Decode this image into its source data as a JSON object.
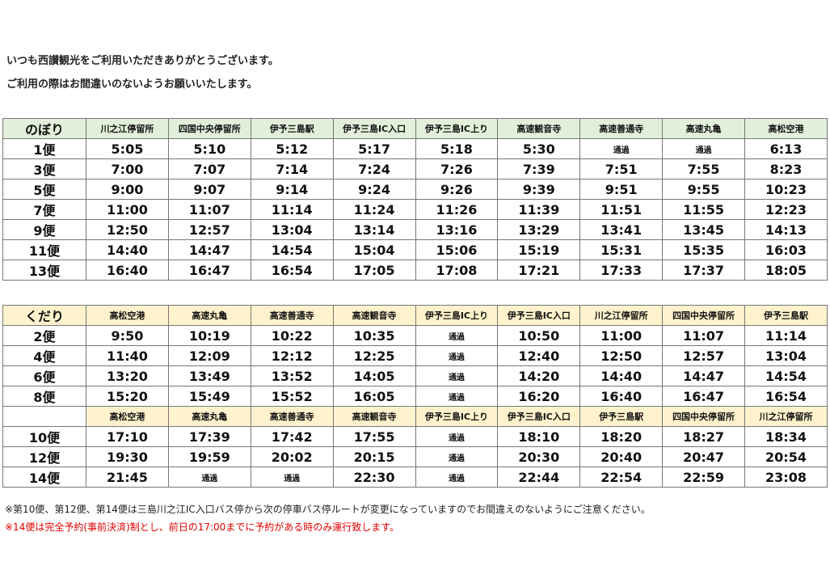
{
  "intro": [
    "いつも西讃観光をご利用いただきありがとうございます。",
    "ご利用の際はお間違いのないようお願いいたします。"
  ],
  "colors": {
    "up_header": "#e2efda",
    "down_header": "#fff2cc",
    "warning": "#e00000"
  },
  "up": {
    "label": "のぼり",
    "stops": [
      "川之江停留所",
      "四国中央停留所",
      "伊予三島駅",
      "伊予三島IC入口",
      "伊予三島IC上り",
      "高速観音寺",
      "高速善通寺",
      "高速丸亀",
      "高松空港"
    ],
    "rows": [
      [
        "1便",
        "5:05",
        "5:10",
        "5:12",
        "5:17",
        "5:18",
        "5:30",
        "通過",
        "通過",
        "6:13"
      ],
      [
        "3便",
        "7:00",
        "7:07",
        "7:14",
        "7:24",
        "7:26",
        "7:39",
        "7:51",
        "7:55",
        "8:23"
      ],
      [
        "5便",
        "9:00",
        "9:07",
        "9:14",
        "9:24",
        "9:26",
        "9:39",
        "9:51",
        "9:55",
        "10:23"
      ],
      [
        "7便",
        "11:00",
        "11:07",
        "11:14",
        "11:24",
        "11:26",
        "11:39",
        "11:51",
        "11:55",
        "12:23"
      ],
      [
        "9便",
        "12:50",
        "12:57",
        "13:04",
        "13:14",
        "13:16",
        "13:29",
        "13:41",
        "13:45",
        "14:13"
      ],
      [
        "11便",
        "14:40",
        "14:47",
        "14:54",
        "15:04",
        "15:06",
        "15:19",
        "15:31",
        "15:35",
        "16:03"
      ],
      [
        "13便",
        "16:40",
        "16:47",
        "16:54",
        "17:05",
        "17:08",
        "17:21",
        "17:33",
        "17:37",
        "18:05"
      ]
    ]
  },
  "down": {
    "label": "くだり",
    "stops": [
      "高松空港",
      "高速丸亀",
      "高速善通寺",
      "高速観音寺",
      "伊予三島IC上り",
      "伊予三島IC入口",
      "川之江停留所",
      "四国中央停留所",
      "伊予三島駅"
    ],
    "rows": [
      [
        "2便",
        "9:50",
        "10:19",
        "10:22",
        "10:35",
        "通過",
        "10:50",
        "11:00",
        "11:07",
        "11:14"
      ],
      [
        "4便",
        "11:40",
        "12:09",
        "12:12",
        "12:25",
        "通過",
        "12:40",
        "12:50",
        "12:57",
        "13:04"
      ],
      [
        "6便",
        "13:20",
        "13:49",
        "13:52",
        "14:05",
        "通過",
        "14:20",
        "14:40",
        "14:47",
        "14:54"
      ],
      [
        "8便",
        "15:20",
        "15:49",
        "15:52",
        "16:05",
        "通過",
        "16:20",
        "16:40",
        "16:47",
        "16:54"
      ]
    ],
    "stops2": [
      "高松空港",
      "高速丸亀",
      "高速善通寺",
      "高速観音寺",
      "伊予三島IC上り",
      "伊予三島IC入口",
      "伊予三島駅",
      "四国中央停留所",
      "川之江停留所"
    ],
    "rows2": [
      [
        "10便",
        "17:10",
        "17:39",
        "17:42",
        "17:55",
        "通過",
        "18:10",
        "18:20",
        "18:27",
        "18:34"
      ],
      [
        "12便",
        "19:30",
        "19:59",
        "20:02",
        "20:15",
        "通過",
        "20:30",
        "20:40",
        "20:47",
        "20:54"
      ],
      [
        "14便",
        "21:45",
        "通過",
        "通過",
        "22:30",
        "通過",
        "22:44",
        "22:54",
        "22:59",
        "23:08"
      ]
    ]
  },
  "notes": [
    "※第10便、第12便、第14便は三島川之江IC入口バス停から次の停車バス停ルートが変更になっていますのでお間違えのないようにご注意ください。",
    "※14便は完全予約(事前決済)制とし、前日の17:00までに予約がある時のみ運行致します。"
  ]
}
